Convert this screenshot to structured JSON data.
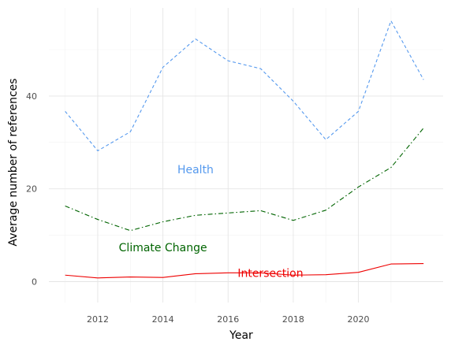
{
  "chart_data": {
    "type": "line",
    "title": "",
    "xlabel": "Year",
    "ylabel": "Average number of references",
    "x": [
      2011,
      2012,
      2013,
      2014,
      2015,
      2016,
      2017,
      2018,
      2019,
      2020,
      2021,
      2022
    ],
    "xlim": [
      2010.5,
      2022.6
    ],
    "ylim": [
      -4.5,
      59
    ],
    "x_ticks": [
      "2012",
      "2014",
      "2016",
      "2018",
      "2020"
    ],
    "y_ticks": [
      "0",
      "20",
      "40"
    ],
    "grid": true,
    "legend": "direct-labels",
    "series": [
      {
        "name": "Health",
        "color": "#5599ee",
        "dash": "dashed",
        "values": [
          36.7,
          28.2,
          32.3,
          46.2,
          52.3,
          47.6,
          45.9,
          38.9,
          30.6,
          36.7,
          56.2,
          43.5
        ]
      },
      {
        "name": "Climate Change",
        "color": "#006400",
        "dash": "dashdot",
        "values": [
          16.3,
          13.4,
          11.0,
          12.9,
          14.3,
          14.8,
          15.3,
          13.2,
          15.4,
          20.4,
          24.6,
          33.1
        ]
      },
      {
        "name": "Intersection",
        "color": "#ee0000",
        "dash": "solid",
        "values": [
          1.4,
          0.8,
          1.0,
          0.9,
          1.7,
          1.9,
          1.9,
          1.4,
          1.5,
          2.0,
          3.8,
          3.9
        ]
      }
    ],
    "labels": [
      {
        "text": "Health",
        "color": "#5599ee",
        "x": 2015.0,
        "y": 24.2
      },
      {
        "text": "Climate Change",
        "color": "#006400",
        "x": 2014.0,
        "y": 7.4
      },
      {
        "text": "Intersection",
        "color": "#ee0000",
        "x": 2017.3,
        "y": 1.9
      }
    ]
  }
}
